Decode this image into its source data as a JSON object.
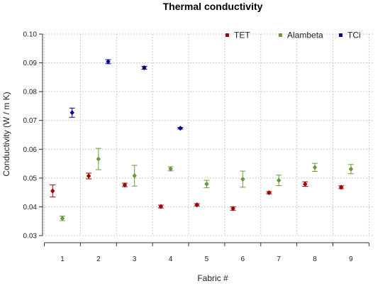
{
  "chart_data": {
    "type": "scatter",
    "title": "Thermal conductivity",
    "xlabel": "Fabric #",
    "ylabel": "Conductivity (W / m K)",
    "x": [
      1,
      2,
      3,
      4,
      5,
      6,
      7,
      8,
      9
    ],
    "xlim": [
      0.45,
      9.65
    ],
    "ylim": [
      0.03,
      0.1
    ],
    "yticks": [
      "0.03",
      "0.04",
      "0.05",
      "0.06",
      "0.07",
      "0.08",
      "0.09",
      "0.10"
    ],
    "xticks": [
      "1",
      "2",
      "3",
      "4",
      "5",
      "6",
      "7",
      "8",
      "9"
    ],
    "grid": true,
    "legend_position": "top-right",
    "series": [
      {
        "name": "TET",
        "color": "#a00000",
        "offset": -0.27,
        "values": [
          0.0455,
          0.0507,
          0.0476,
          0.0401,
          0.0407,
          0.0394,
          0.0449,
          0.0479,
          0.0468
        ],
        "errors": [
          0.0021,
          0.001,
          0.0006,
          0.0005,
          0.0004,
          0.0006,
          0.0004,
          0.0008,
          0.0005
        ]
      },
      {
        "name": "Alambeta",
        "color": "#6a9a3c",
        "offset": 0.0,
        "values": [
          0.036,
          0.0566,
          0.0508,
          0.0532,
          0.0479,
          0.0496,
          0.0492,
          0.0537,
          0.0531
        ],
        "errors": [
          0.0008,
          0.0037,
          0.0036,
          0.0007,
          0.0013,
          0.0028,
          0.0018,
          0.0014,
          0.0016
        ]
      },
      {
        "name": "TCi",
        "color": "#000090",
        "offset": 0.27,
        "x_index": [
          0,
          1,
          2,
          3
        ],
        "values": [
          0.0727,
          0.0904,
          0.0883,
          0.0673
        ],
        "errors": [
          0.0016,
          0.0007,
          0.0005,
          0.0003
        ]
      }
    ]
  }
}
